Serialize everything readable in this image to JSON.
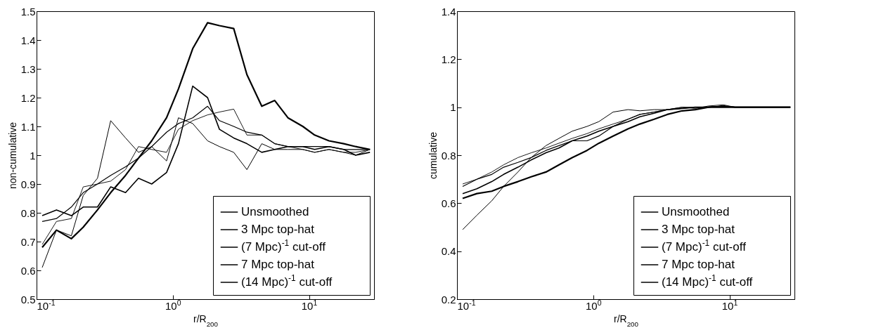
{
  "chart_data": [
    {
      "type": "line",
      "xlabel": "r/R$_{200}$",
      "ylabel": "non-cumulative",
      "log": "x",
      "grid": false,
      "legend": "bottom right",
      "marker": "none",
      "x": [
        0.11,
        0.14,
        0.18,
        0.22,
        0.28,
        0.35,
        0.45,
        0.56,
        0.7,
        0.9,
        1.1,
        1.4,
        1.8,
        2.2,
        2.8,
        3.5,
        4.5,
        5.6,
        7,
        9,
        11,
        14,
        18,
        22,
        28
      ],
      "xlim": [
        0.1,
        30
      ],
      "xticks": [
        {
          "value": 0.1,
          "label": "10$^{-1}$"
        },
        {
          "value": 1,
          "label": "10$^{0}$"
        },
        {
          "value": 10,
          "label": "10$^{1}$"
        }
      ],
      "ylim": [
        0.5,
        1.5
      ],
      "yticks": [
        0.5,
        0.6,
        0.7,
        0.8,
        0.9,
        1,
        1.1,
        1.2,
        1.3,
        1.4,
        1.5
      ],
      "series": [
        {
          "name": "Unsmoothed",
          "color": "#000000",
          "values": [
            0.61,
            0.74,
            0.72,
            0.86,
            0.92,
            1.12,
            1.06,
            1.01,
            1.03,
            0.98,
            1.13,
            1.11,
            1.05,
            1.03,
            1.01,
            0.95,
            1.04,
            1.02,
            1.02,
            1.02,
            1.01,
            1.02,
            1.01,
            1.0,
            1.02
          ]
        },
        {
          "name": "3 Mpc top-hat",
          "color": "#000000",
          "values": [
            0.68,
            0.74,
            0.71,
            0.75,
            0.81,
            0.87,
            0.93,
            0.99,
            1.05,
            1.13,
            1.23,
            1.37,
            1.46,
            1.45,
            1.44,
            1.28,
            1.17,
            1.19,
            1.13,
            1.1,
            1.07,
            1.05,
            1.04,
            1.03,
            1.02
          ]
        },
        {
          "name": "(7 Mpc)$^{-1}$ cut-off",
          "color": "#000000",
          "values": [
            0.79,
            0.81,
            0.79,
            0.82,
            0.82,
            0.89,
            0.87,
            0.92,
            0.9,
            0.94,
            1.04,
            1.24,
            1.2,
            1.09,
            1.06,
            1.04,
            1.01,
            1.02,
            1.03,
            1.03,
            1.02,
            1.03,
            1.02,
            1.0,
            1.01
          ]
        },
        {
          "name": "7 Mpc top-hat",
          "color": "#000000",
          "values": [
            0.77,
            0.78,
            0.82,
            0.87,
            0.9,
            0.93,
            0.96,
            0.99,
            1.03,
            1.08,
            1.11,
            1.13,
            1.17,
            1.12,
            1.1,
            1.08,
            1.07,
            1.04,
            1.03,
            1.03,
            1.03,
            1.03,
            1.02,
            1.02,
            1.02
          ]
        },
        {
          "name": "(14 Mpc)$^{-1}$ cut-off",
          "color": "#000000",
          "values": [
            0.69,
            0.77,
            0.78,
            0.89,
            0.9,
            0.91,
            0.95,
            1.03,
            1.02,
            1.01,
            1.09,
            1.12,
            1.14,
            1.15,
            1.16,
            1.07,
            1.07,
            1.04,
            1.03,
            1.02,
            1.01,
            1.02,
            1.01,
            1.01,
            1.02
          ]
        }
      ]
    },
    {
      "type": "line",
      "xlabel": "r/R$_{200}$",
      "ylabel": "cumulative",
      "log": "x",
      "grid": false,
      "legend": "bottom right",
      "marker": "none",
      "x": [
        0.11,
        0.14,
        0.18,
        0.22,
        0.28,
        0.35,
        0.45,
        0.56,
        0.7,
        0.9,
        1.1,
        1.4,
        1.8,
        2.2,
        2.8,
        3.5,
        4.5,
        5.6,
        7,
        9,
        11,
        14,
        18,
        22,
        28
      ],
      "xlim": [
        0.1,
        30
      ],
      "xticks": [
        {
          "value": 0.1,
          "label": "10$^{-1}$"
        },
        {
          "value": 1,
          "label": "10$^{0}$"
        },
        {
          "value": 10,
          "label": "10$^{1}$"
        }
      ],
      "ylim": [
        0.2,
        1.4
      ],
      "yticks": [
        0.2,
        0.4,
        0.6,
        0.8,
        1,
        1.2,
        1.4
      ],
      "series": [
        {
          "name": "Unsmoothed",
          "color": "#000000",
          "values": [
            0.49,
            0.55,
            0.61,
            0.67,
            0.73,
            0.79,
            0.84,
            0.87,
            0.9,
            0.92,
            0.94,
            0.98,
            0.99,
            0.985,
            0.99,
            0.99,
            1.0,
            0.995,
            1.005,
            1.01,
            1.0,
            1.0,
            1.0,
            1.0,
            1.0
          ]
        },
        {
          "name": "3 Mpc top-hat",
          "color": "#000000",
          "values": [
            0.62,
            0.64,
            0.65,
            0.67,
            0.69,
            0.71,
            0.73,
            0.76,
            0.79,
            0.82,
            0.85,
            0.88,
            0.91,
            0.93,
            0.95,
            0.97,
            0.985,
            0.99,
            1.0,
            1.0,
            1.0,
            1.0,
            1.0,
            1.0,
            1.0
          ]
        },
        {
          "name": "(7 Mpc)$^{-1}$ cut-off",
          "color": "#000000",
          "values": [
            0.64,
            0.66,
            0.69,
            0.72,
            0.75,
            0.78,
            0.81,
            0.83,
            0.86,
            0.88,
            0.9,
            0.92,
            0.94,
            0.96,
            0.975,
            0.99,
            0.995,
            1.0,
            1.0,
            1.005,
            1.0,
            1.0,
            1.0,
            1.0,
            1.0
          ]
        },
        {
          "name": "7 Mpc top-hat",
          "color": "#000000",
          "values": [
            0.67,
            0.7,
            0.72,
            0.75,
            0.77,
            0.79,
            0.82,
            0.84,
            0.86,
            0.86,
            0.88,
            0.92,
            0.95,
            0.97,
            0.98,
            0.99,
            0.995,
            1.0,
            1.0,
            1.005,
            1.0,
            1.0,
            1.0,
            1.0,
            1.0
          ]
        },
        {
          "name": "(14 Mpc)$^{-1}$ cut-off",
          "color": "#000000",
          "values": [
            0.68,
            0.7,
            0.73,
            0.76,
            0.79,
            0.81,
            0.83,
            0.85,
            0.87,
            0.89,
            0.91,
            0.93,
            0.95,
            0.97,
            0.98,
            0.99,
            1.0,
            1.0,
            1.0,
            1.005,
            1.0,
            1.0,
            1.0,
            1.0,
            1.0
          ]
        }
      ]
    }
  ]
}
